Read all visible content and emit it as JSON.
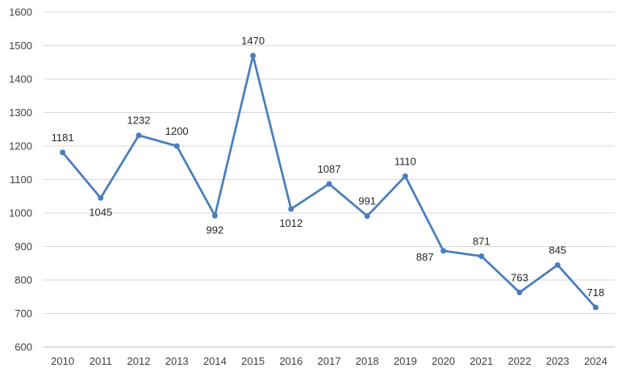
{
  "chart_data": {
    "type": "line",
    "title": "",
    "xlabel": "",
    "ylabel": "",
    "categories": [
      "2010",
      "2011",
      "2012",
      "2013",
      "2014",
      "2015",
      "2016",
      "2017",
      "2018",
      "2019",
      "2020",
      "2021",
      "2022",
      "2023",
      "2024"
    ],
    "series": [
      {
        "values": [
          1181,
          1045,
          1232,
          1200,
          992,
          1470,
          1012,
          1087,
          991,
          1110,
          887,
          871,
          763,
          845,
          718
        ],
        "color": "#4a7ebb",
        "label_positions": [
          "above",
          "below",
          "above",
          "above",
          "below",
          "above",
          "below",
          "above",
          "above",
          "above",
          "left",
          "above",
          "above",
          "above",
          "above"
        ]
      }
    ],
    "ylim": [
      600,
      1600
    ],
    "yticks": [
      600,
      700,
      800,
      900,
      1000,
      1100,
      1200,
      1300,
      1400,
      1500,
      1600
    ],
    "grid": true,
    "legend": "none"
  }
}
